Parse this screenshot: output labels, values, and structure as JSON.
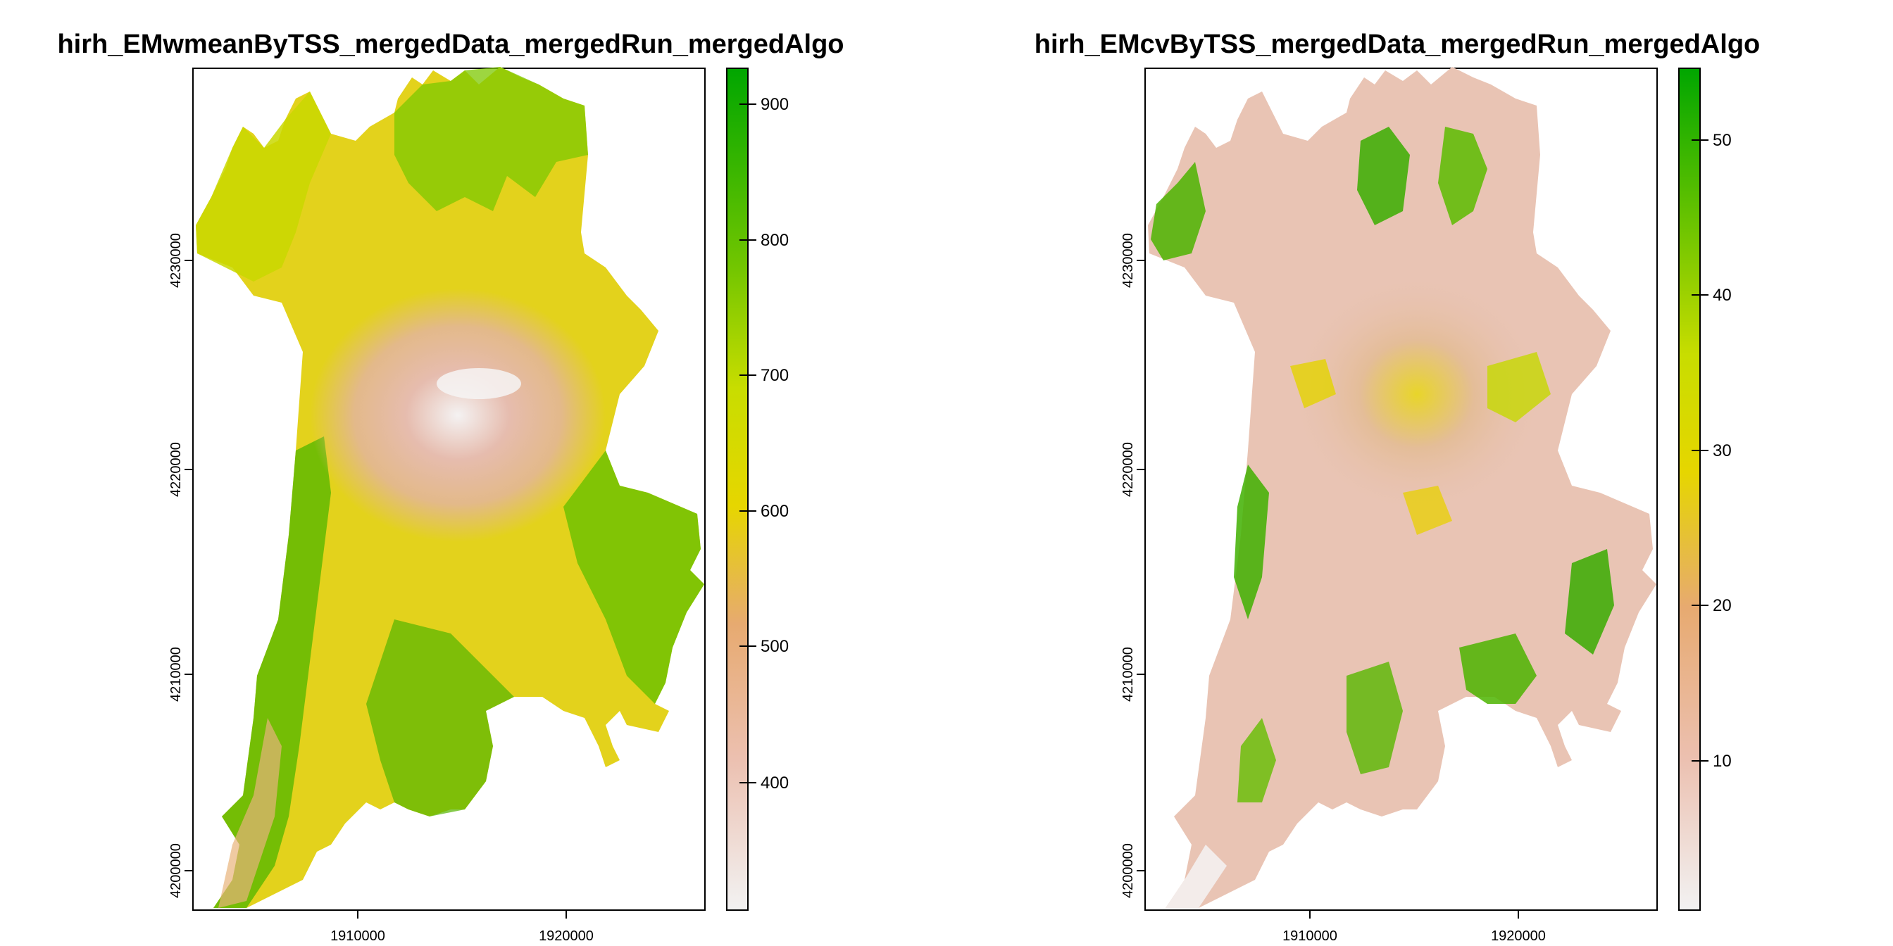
{
  "maps": [
    {
      "title": "hirh_EMwmeanByTSS_mergedData_mergedRun_mergedAlgo",
      "x_ticks": [
        "1910000",
        "1920000"
      ],
      "y_ticks": [
        "4200000",
        "4210000",
        "4220000",
        "4230000"
      ],
      "legend_ticks": [
        "400",
        "500",
        "600",
        "700",
        "800",
        "900"
      ],
      "legend_range": [
        300,
        925
      ],
      "palette": [
        "#f2f2f2",
        "#ecb9a5",
        "#e6b04a",
        "#e6e400",
        "#9ed400",
        "#61c200",
        "#00a600"
      ]
    },
    {
      "title": "hirh_EMcvByTSS_mergedData_mergedRun_mergedAlgo",
      "x_ticks": [
        "1910000",
        "1920000"
      ],
      "y_ticks": [
        "4200000",
        "4210000",
        "4220000",
        "4230000"
      ],
      "legend_ticks": [
        "10",
        "20",
        "30",
        "40",
        "50"
      ],
      "legend_range": [
        1,
        55
      ],
      "palette": [
        "#f2f2f2",
        "#ecb9a5",
        "#e6b04a",
        "#e6e400",
        "#9ed400",
        "#61c200",
        "#00a600"
      ]
    }
  ]
}
